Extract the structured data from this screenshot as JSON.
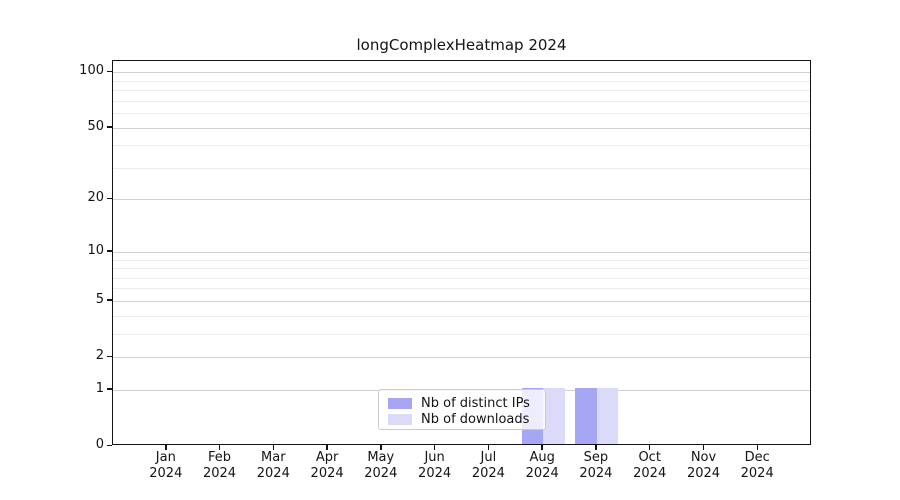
{
  "chart_data": {
    "type": "bar",
    "title": "longComplexHeatmap 2024",
    "x_categories": [
      "Jan",
      "Feb",
      "Mar",
      "Apr",
      "May",
      "Jun",
      "Jul",
      "Aug",
      "Sep",
      "Oct",
      "Nov",
      "Dec"
    ],
    "x_year_label": "2024",
    "series": [
      {
        "name": "Nb of distinct IPs",
        "color": "#a6a6f4",
        "values": [
          0,
          0,
          0,
          0,
          0,
          0,
          0,
          1,
          1,
          0,
          0,
          0
        ]
      },
      {
        "name": "Nb of downloads",
        "color": "#dbdbf9",
        "values": [
          0,
          0,
          0,
          0,
          0,
          0,
          0,
          1,
          1,
          0,
          0,
          0
        ]
      }
    ],
    "y_scale": "log10(1+y)",
    "y_major_ticks": [
      0,
      1,
      2,
      5,
      10,
      20,
      50,
      100
    ],
    "y_minor_ticks": [
      3,
      4,
      6,
      7,
      8,
      9,
      30,
      40,
      60,
      70,
      80,
      90
    ],
    "ylim": [
      0,
      115
    ],
    "bar_width_fraction": 0.4,
    "grid": "horizontal",
    "legend_position": "lower center"
  },
  "colors": {
    "major_grid": "#d2d2d2",
    "minor_grid": "#ededed",
    "axis": "#141414",
    "background": "#ffffff",
    "legend_border": "#cbcbcb"
  }
}
